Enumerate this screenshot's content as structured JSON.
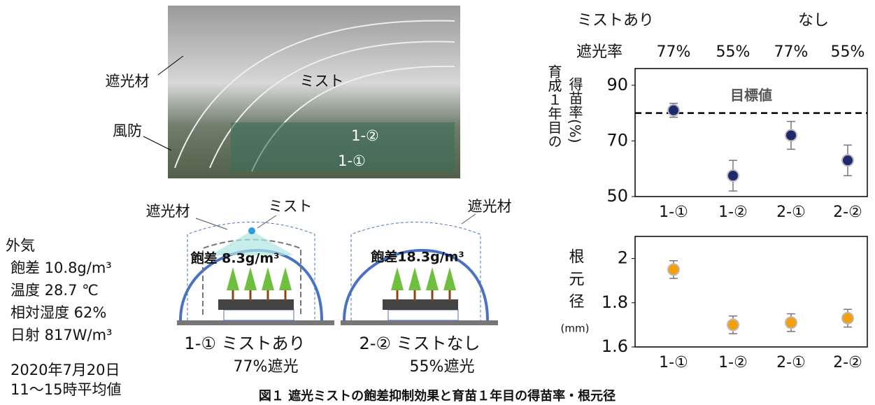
{
  "photo": {
    "labels": [
      "遮光材",
      "風防",
      "ミスト",
      "1-②",
      "1-①"
    ]
  },
  "diagrams": [
    {
      "shade": "遮光材",
      "mist": "ミスト",
      "deficit": "飽差 8.3g/m³",
      "title": "1-① ミストあり",
      "shading": "77%遮光"
    },
    {
      "shade": "遮光材",
      "deficit": "飽差18.3g/m³",
      "title": "2-② ミストなし",
      "shading": "55%遮光"
    }
  ],
  "outside": {
    "title": "外気",
    "lines": [
      "飽差 10.8g/m³",
      "温度 28.7 ℃",
      "相対湿度 62%",
      "日射 817W/m³"
    ],
    "date": "2020年7月20日",
    "period": "11〜15時平均値"
  },
  "header": {
    "groups": [
      "ミストあり",
      "なし"
    ],
    "shading_label": "遮光率",
    "shading": [
      "77%",
      "55%",
      "77%",
      "55%"
    ]
  },
  "chart_data": [
    {
      "type": "dot",
      "y_label_outer": "育成１年目の",
      "y_label": "得苗率(%)",
      "categories": [
        "1-①",
        "1-②",
        "2-①",
        "2-②"
      ],
      "values": [
        81,
        57.5,
        72,
        63
      ],
      "errors": [
        2.5,
        5.5,
        5,
        5.5
      ],
      "color": "#1f2a6e",
      "ylim": [
        50,
        96
      ],
      "yticks": [
        50,
        70,
        90
      ],
      "target": {
        "value": 80,
        "label": "目標値"
      }
    },
    {
      "type": "dot",
      "y_label": "根元径",
      "y_unit": "(mm)",
      "categories": [
        "1-①",
        "1-②",
        "2-①",
        "2-②"
      ],
      "values": [
        1.95,
        1.7,
        1.71,
        1.73
      ],
      "errors": [
        0.04,
        0.04,
        0.04,
        0.04
      ],
      "color": "#f5a00a",
      "ylim": [
        1.6,
        2.1
      ],
      "yticks": [
        1.6,
        1.8,
        2
      ]
    }
  ],
  "caption": "図１ 遮光ミストの飽差抑制効果と育苗１年目の得苗率・根元径"
}
